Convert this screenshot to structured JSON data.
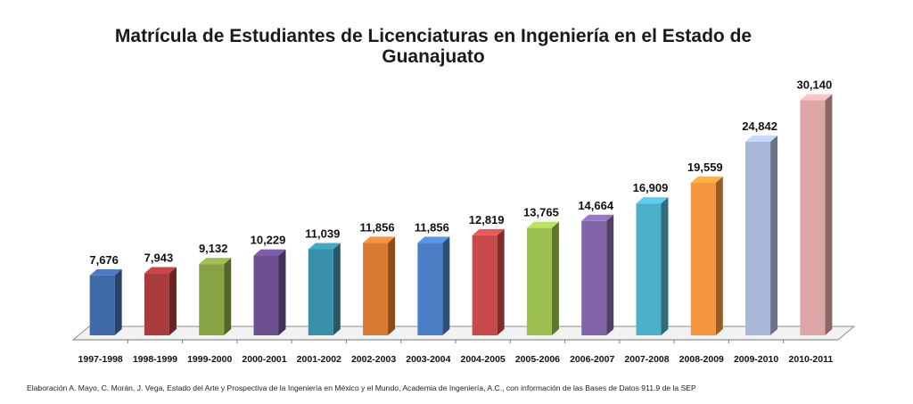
{
  "chart_data": {
    "type": "bar",
    "title": "Matrícula de Estudiantes de Licenciaturas en Ingeniería en el Estado de",
    "title_line2": "Guanajuato",
    "categories": [
      "1997-1998",
      "1998-1999",
      "1999-2000",
      "2000-2001",
      "2001-2002",
      "2002-2003",
      "2003-2004",
      "2004-2005",
      "2005-2006",
      "2006-2007",
      "2007-2008",
      "2008-2009",
      "2009-2010",
      "2010-2011"
    ],
    "values": [
      7676,
      7943,
      9132,
      10229,
      11039,
      11856,
      11856,
      12819,
      13765,
      14664,
      16909,
      19559,
      24842,
      30140
    ],
    "value_labels": [
      "7,676",
      "7,943",
      "9,132",
      "10,229",
      "11,039",
      "11,856",
      "11,856",
      "12,819",
      "13,765",
      "14,664",
      "16,909",
      "19,559",
      "24,842",
      "30,140"
    ],
    "colors": [
      "#3f6aa8",
      "#aa3b3b",
      "#86a444",
      "#6b4f8f",
      "#3a8fa8",
      "#d97c32",
      "#4a7fc6",
      "#c84a4a",
      "#9bc050",
      "#8165a8",
      "#4bb0cc",
      "#f7943e",
      "#a9b8d8",
      "#dca6a6"
    ],
    "ylim": [
      0,
      31000
    ],
    "grid": false,
    "legend": "none",
    "xlabel": "",
    "ylabel": ""
  },
  "source_note": "Elaboración A. Mayo, C. Morán, J. Vega, Estado del Arte y Prospectiva de la Ingeniería en México y el Mundo, Academia de Ingeniería, A.C., con información de las Bases de Datos  911.9 de la SEP"
}
